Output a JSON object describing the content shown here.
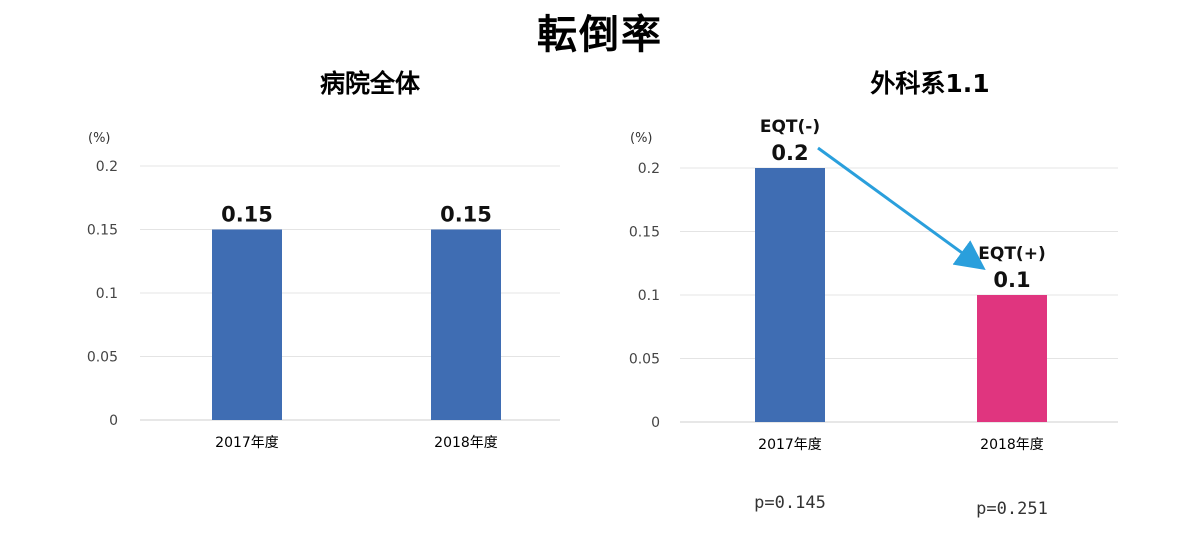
{
  "title": "転倒率",
  "chart_data": [
    {
      "type": "bar",
      "title": "病院全体",
      "unit_label": "(%)",
      "categories": [
        "2017年度",
        "2018年度"
      ],
      "values": [
        0.15,
        0.15
      ],
      "value_labels": [
        "0.15",
        "0.15"
      ],
      "colors": [
        "#3f6db3",
        "#3f6db3"
      ],
      "ylim": [
        0,
        0.2
      ],
      "yticks": [
        "0",
        "0.05",
        "0.1",
        "0.15",
        "0.2"
      ],
      "grid": true
    },
    {
      "type": "bar",
      "title": "外科系1.1",
      "unit_label": "(%)",
      "categories": [
        "2017年度",
        "2018年度"
      ],
      "values": [
        0.2,
        0.1
      ],
      "value_labels": [
        "0.2",
        "0.1"
      ],
      "bar_annotations": [
        "EQT(-)",
        "EQT(+)"
      ],
      "p_values": [
        "p=0.145",
        "p=0.251"
      ],
      "colors": [
        "#3f6db3",
        "#e0357f"
      ],
      "arrow_color": "#2a9fdc",
      "ylim": [
        0,
        0.2
      ],
      "yticks": [
        "0",
        "0.05",
        "0.1",
        "0.15",
        "0.2"
      ],
      "grid": true
    }
  ]
}
